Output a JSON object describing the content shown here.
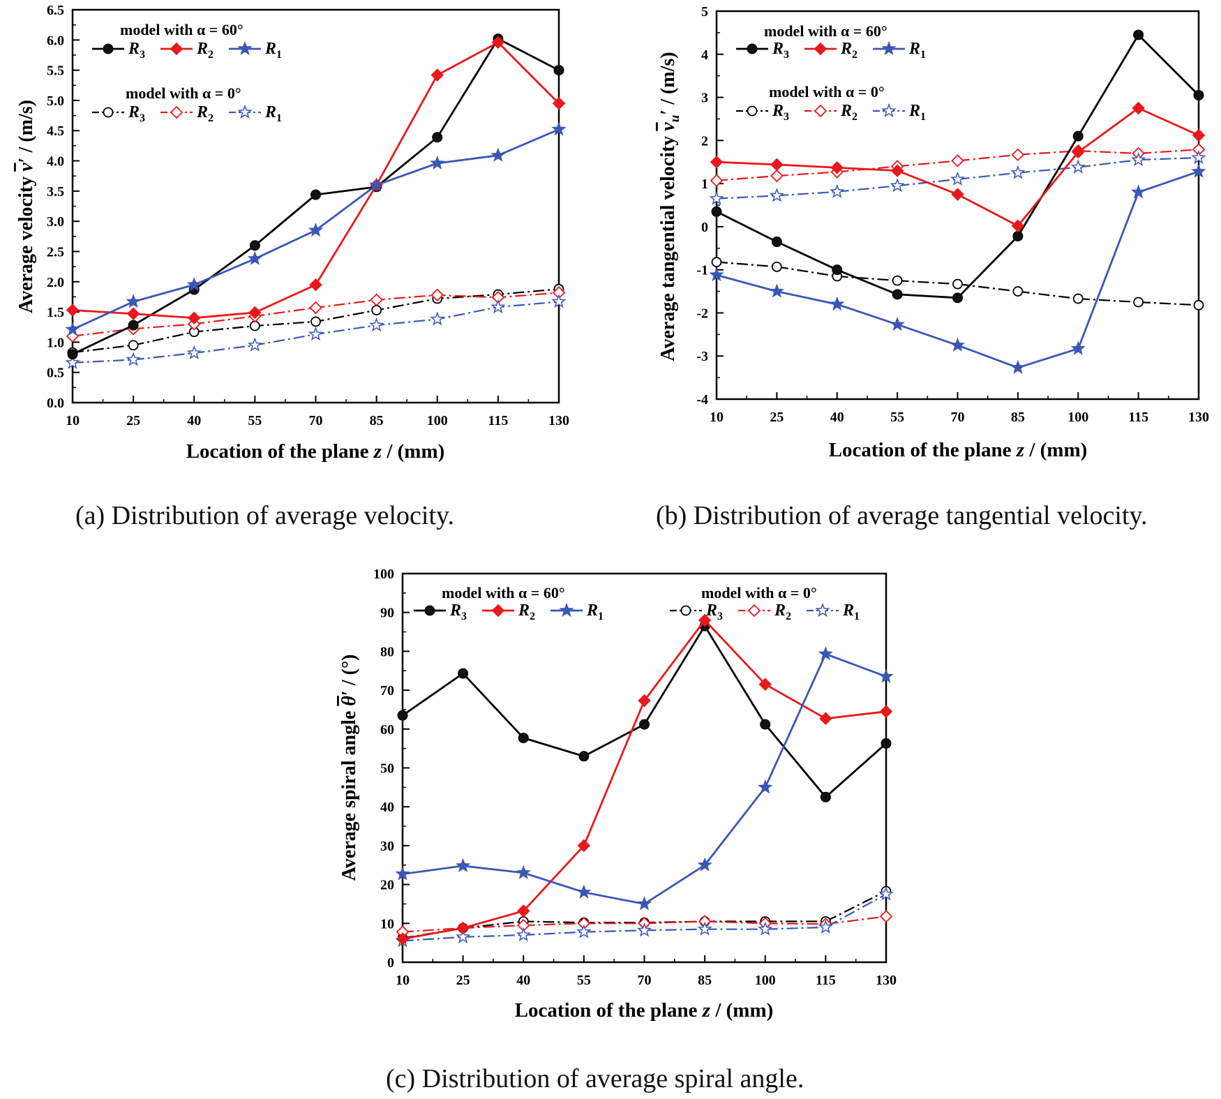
{
  "colors": {
    "R3": "#000000",
    "R2": "#e8191c",
    "R1": "#3a57b5"
  },
  "legend": {
    "model60": "model with α = 60°",
    "model0": "model with α = 0°",
    "r3": "R",
    "r3sub": "3",
    "r2": "R",
    "r2sub": "2",
    "r1": "R",
    "r1sub": "1"
  },
  "chart_data": [
    {
      "id": "a",
      "type": "line",
      "caption": "(a) Distribution of average velocity.",
      "xlabel": "Location of the plane z / (mm)",
      "ylabel_prefix": "Average velocity ",
      "ylabel_symbol": "v",
      "ylabel_sub": "",
      "ylabel_suffix": "′ / (m/s)",
      "x": [
        10,
        25,
        40,
        55,
        70,
        85,
        100,
        115,
        130
      ],
      "xlim": [
        10,
        130
      ],
      "ylim": [
        0,
        6.5
      ],
      "yticks": [
        "0.0",
        "0.5",
        "1.0",
        "1.5",
        "2.0",
        "2.5",
        "3.0",
        "3.5",
        "4.0",
        "4.5",
        "5.0",
        "5.5",
        "6.0",
        "6.5"
      ],
      "series": [
        {
          "name": "R3 (α = 60°)",
          "key": "R3",
          "dashed": false,
          "marker": "ball",
          "values": [
            0.8,
            1.28,
            1.87,
            2.6,
            3.44,
            3.57,
            4.39,
            6.02,
            5.5
          ]
        },
        {
          "name": "R2 (α = 60°)",
          "key": "R2",
          "dashed": false,
          "marker": "diamond",
          "values": [
            1.53,
            1.47,
            1.4,
            1.49,
            1.95,
            3.6,
            5.42,
            5.96,
            4.95
          ]
        },
        {
          "name": "R1 (α = 60°)",
          "key": "R1",
          "dashed": false,
          "marker": "star",
          "values": [
            1.21,
            1.67,
            1.95,
            2.38,
            2.85,
            3.6,
            3.96,
            4.09,
            4.52
          ]
        },
        {
          "name": "R3 (α = 0°)",
          "key": "R3",
          "dashed": true,
          "marker": "circle",
          "values": [
            0.83,
            0.95,
            1.17,
            1.27,
            1.34,
            1.53,
            1.72,
            1.79,
            1.88
          ]
        },
        {
          "name": "R2 (α = 0°)",
          "key": "R2",
          "dashed": true,
          "marker": "diamond-open",
          "values": [
            1.1,
            1.22,
            1.3,
            1.43,
            1.57,
            1.7,
            1.78,
            1.74,
            1.82
          ]
        },
        {
          "name": "R1 (α = 0°)",
          "key": "R1",
          "dashed": true,
          "marker": "star-open",
          "values": [
            0.66,
            0.71,
            0.82,
            0.95,
            1.13,
            1.28,
            1.38,
            1.58,
            1.67
          ]
        }
      ]
    },
    {
      "id": "b",
      "type": "line",
      "caption": "(b) Distribution of average tangential velocity.",
      "xlabel": "Location of the plane z / (mm)",
      "ylabel_prefix": "Average tangential velocity ",
      "ylabel_symbol": "v",
      "ylabel_sub": "u",
      "ylabel_suffix": "′ / (m/s)",
      "x": [
        10,
        25,
        40,
        55,
        70,
        85,
        100,
        115,
        130
      ],
      "xlim": [
        10,
        130
      ],
      "ylim": [
        -4,
        5
      ],
      "yticks": [
        "-4",
        "-3",
        "-2",
        "-1",
        "0",
        "1",
        "2",
        "3",
        "4",
        "5"
      ],
      "series": [
        {
          "name": "R3 (α = 60°)",
          "key": "R3",
          "dashed": false,
          "marker": "ball",
          "values": [
            0.35,
            -0.35,
            -1.0,
            -1.57,
            -1.65,
            -0.22,
            2.1,
            4.45,
            3.05
          ]
        },
        {
          "name": "R2 (α = 60°)",
          "key": "R2",
          "dashed": false,
          "marker": "diamond",
          "values": [
            1.5,
            1.44,
            1.37,
            1.3,
            0.75,
            0.02,
            1.73,
            2.75,
            2.12
          ]
        },
        {
          "name": "R1 (α = 60°)",
          "key": "R1",
          "dashed": false,
          "marker": "star",
          "values": [
            -1.12,
            -1.5,
            -1.8,
            -2.27,
            -2.75,
            -3.27,
            -2.83,
            0.8,
            1.28
          ]
        },
        {
          "name": "R3 (α = 0°)",
          "key": "R3",
          "dashed": true,
          "marker": "circle",
          "values": [
            -0.82,
            -0.93,
            -1.15,
            -1.25,
            -1.33,
            -1.5,
            -1.67,
            -1.75,
            -1.82
          ]
        },
        {
          "name": "R2 (α = 0°)",
          "key": "R2",
          "dashed": true,
          "marker": "diamond-open",
          "values": [
            1.07,
            1.18,
            1.27,
            1.4,
            1.53,
            1.67,
            1.76,
            1.7,
            1.79
          ]
        },
        {
          "name": "R1 (α = 0°)",
          "key": "R1",
          "dashed": true,
          "marker": "star-open",
          "values": [
            0.65,
            0.72,
            0.81,
            0.95,
            1.1,
            1.25,
            1.38,
            1.55,
            1.6
          ]
        }
      ]
    },
    {
      "id": "c",
      "type": "line",
      "caption": "(c) Distribution of average spiral angle.",
      "xlabel": "Location of the plane z / (mm)",
      "ylabel_prefix": "Average spiral angle ",
      "ylabel_symbol": "θ",
      "ylabel_sub": "",
      "ylabel_suffix": "′  / (°)",
      "x": [
        10,
        25,
        40,
        55,
        70,
        85,
        100,
        115,
        130
      ],
      "xlim": [
        10,
        130
      ],
      "ylim": [
        0,
        100
      ],
      "yticks": [
        "0",
        "10",
        "20",
        "30",
        "40",
        "50",
        "60",
        "70",
        "80",
        "90",
        "100"
      ],
      "series": [
        {
          "name": "R3 (α = 60°)",
          "key": "R3",
          "dashed": false,
          "marker": "ball",
          "values": [
            63.5,
            74.3,
            57.7,
            53.0,
            61.2,
            86.5,
            61.2,
            42.5,
            56.3
          ]
        },
        {
          "name": "R2 (α = 60°)",
          "key": "R2",
          "dashed": false,
          "marker": "diamond",
          "values": [
            6.0,
            8.8,
            13.2,
            30.0,
            67.3,
            88.0,
            71.5,
            62.7,
            64.5
          ]
        },
        {
          "name": "R1 (α = 60°)",
          "key": "R1",
          "dashed": false,
          "marker": "star",
          "values": [
            22.7,
            24.8,
            23.0,
            18.0,
            15.0,
            25.0,
            45.0,
            79.3,
            73.5
          ]
        },
        {
          "name": "R3 (α = 0°)",
          "key": "R3",
          "dashed": true,
          "marker": "circle",
          "values": [
            6.2,
            8.8,
            10.5,
            10.2,
            10.2,
            10.5,
            10.5,
            10.5,
            18.3
          ]
        },
        {
          "name": "R2 (α = 0°)",
          "key": "R2",
          "dashed": true,
          "marker": "diamond-open",
          "values": [
            7.8,
            8.8,
            9.5,
            10.0,
            10.0,
            10.5,
            10.0,
            9.8,
            11.8
          ]
        },
        {
          "name": "R1 (α = 0°)",
          "key": "R1",
          "dashed": true,
          "marker": "star-open",
          "values": [
            5.5,
            6.5,
            7.0,
            7.8,
            8.2,
            8.5,
            8.5,
            9.0,
            17.5
          ]
        }
      ]
    }
  ]
}
